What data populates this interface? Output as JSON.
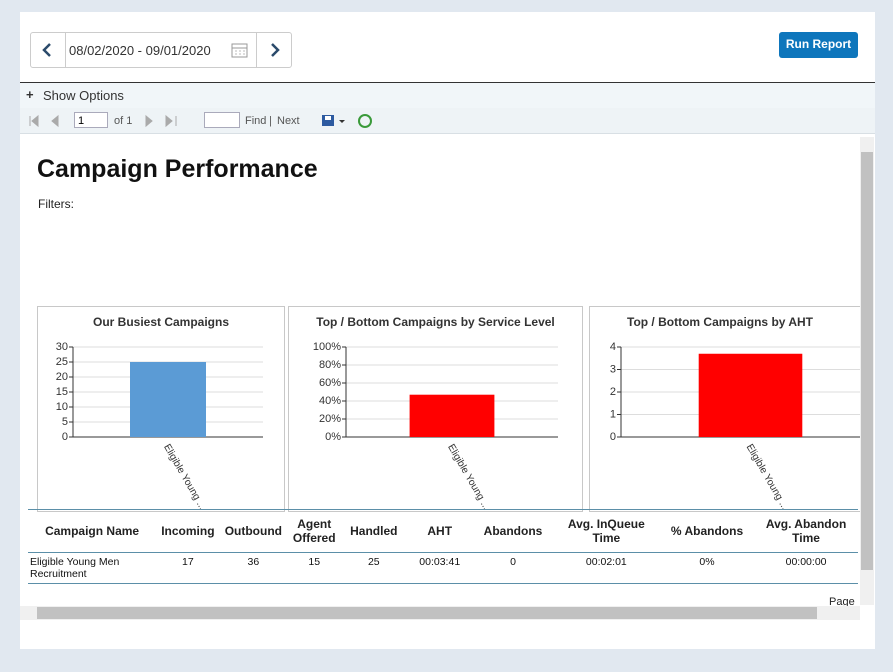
{
  "toolbar": {
    "date_range": "08/02/2020 - 09/01/2020",
    "run_button": "Run Report",
    "show_options": "Show Options",
    "page_input": "1",
    "of_pages": "of 1",
    "find": "Find",
    "separator": "|",
    "next": "Next"
  },
  "report": {
    "title": "Campaign Performance",
    "filters_label": "Filters:",
    "footer": "Page"
  },
  "chart_data": [
    {
      "type": "bar",
      "title": "Our Busiest Campaigns",
      "categories": [
        "Eligible Young ..."
      ],
      "values": [
        25
      ],
      "color": "#5b9bd5",
      "ylim": [
        0,
        30
      ],
      "yticks": [
        0,
        5,
        10,
        15,
        20,
        25,
        30
      ],
      "grid": true
    },
    {
      "type": "bar",
      "title": "Top  / Bottom  Campaigns by Service Level",
      "categories": [
        "Eligible Young ..."
      ],
      "values": [
        47
      ],
      "color": "#ff0000",
      "ylim": [
        0,
        100
      ],
      "yticks": [
        {
          "value": 0,
          "label": "0%"
        },
        {
          "value": 20,
          "label": "20%"
        },
        {
          "value": 40,
          "label": "40%"
        },
        {
          "value": 60,
          "label": "60%"
        },
        {
          "value": 80,
          "label": "80%"
        },
        {
          "value": 100,
          "label": "100%"
        }
      ],
      "grid": true
    },
    {
      "type": "bar",
      "title": "Top  / Bottom  Campaigns by AHT",
      "categories": [
        "Eligible Young ..."
      ],
      "values": [
        3.7
      ],
      "color": "#ff0000",
      "ylim": [
        0,
        4
      ],
      "yticks": [
        0,
        1,
        2,
        3,
        4
      ],
      "grid": true
    }
  ],
  "table": {
    "headers": [
      "Campaign Name",
      "Incoming",
      "Outbound",
      "Agent Offered",
      "Handled",
      "AHT",
      "Abandons",
      "Avg. InQueue Time",
      "% Abandons",
      "Avg. Abandon Time"
    ],
    "rows": [
      [
        "Eligible Young Men Recruitment",
        "17",
        "36",
        "15",
        "25",
        "00:03:41",
        "0",
        "00:02:01",
        "0%",
        "00:00:00"
      ]
    ]
  }
}
